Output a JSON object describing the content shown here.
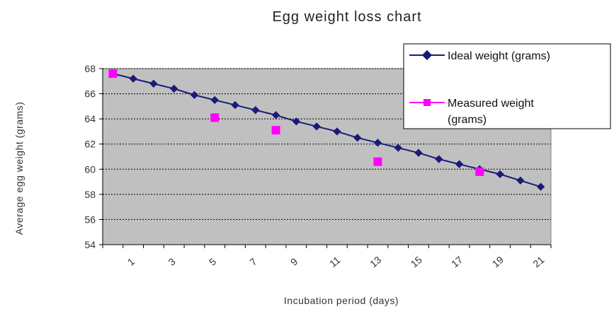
{
  "chart_data": {
    "type": "line",
    "title": "Egg weight loss chart",
    "xlabel": "Incubation period (days)",
    "ylabel": "Average egg weight (grams)",
    "x": [
      0,
      1,
      2,
      3,
      4,
      5,
      6,
      7,
      8,
      9,
      10,
      11,
      12,
      13,
      14,
      15,
      16,
      17,
      18,
      19,
      20,
      21
    ],
    "x_tick_labels": [
      "1",
      "3",
      "5",
      "7",
      "9",
      "11",
      "13",
      "15",
      "17",
      "19",
      "21"
    ],
    "y_tick_labels": [
      "54",
      "56",
      "58",
      "60",
      "62",
      "64",
      "66",
      "68"
    ],
    "ylim": [
      54,
      68
    ],
    "grid": true,
    "legend_position": "top-right",
    "series": [
      {
        "name": "Ideal weight (grams)",
        "color": "#1a1a7a",
        "marker": "diamond",
        "line": true,
        "x": [
          0,
          1,
          2,
          3,
          4,
          5,
          6,
          7,
          8,
          9,
          10,
          11,
          12,
          13,
          14,
          15,
          16,
          17,
          18,
          19,
          20,
          21
        ],
        "values": [
          67.6,
          67.2,
          66.8,
          66.4,
          65.9,
          65.5,
          65.1,
          64.7,
          64.3,
          63.8,
          63.4,
          63.0,
          62.5,
          62.1,
          61.7,
          61.3,
          60.8,
          60.4,
          60.0,
          59.6,
          59.1,
          58.6
        ]
      },
      {
        "name": "Measured weight (grams)",
        "color": "#ff00ff",
        "marker": "square",
        "line": false,
        "x": [
          0,
          5,
          8,
          13,
          18
        ],
        "values": [
          67.6,
          64.1,
          63.1,
          60.6,
          59.8
        ]
      }
    ],
    "plot_background": "#c0c0c0"
  }
}
